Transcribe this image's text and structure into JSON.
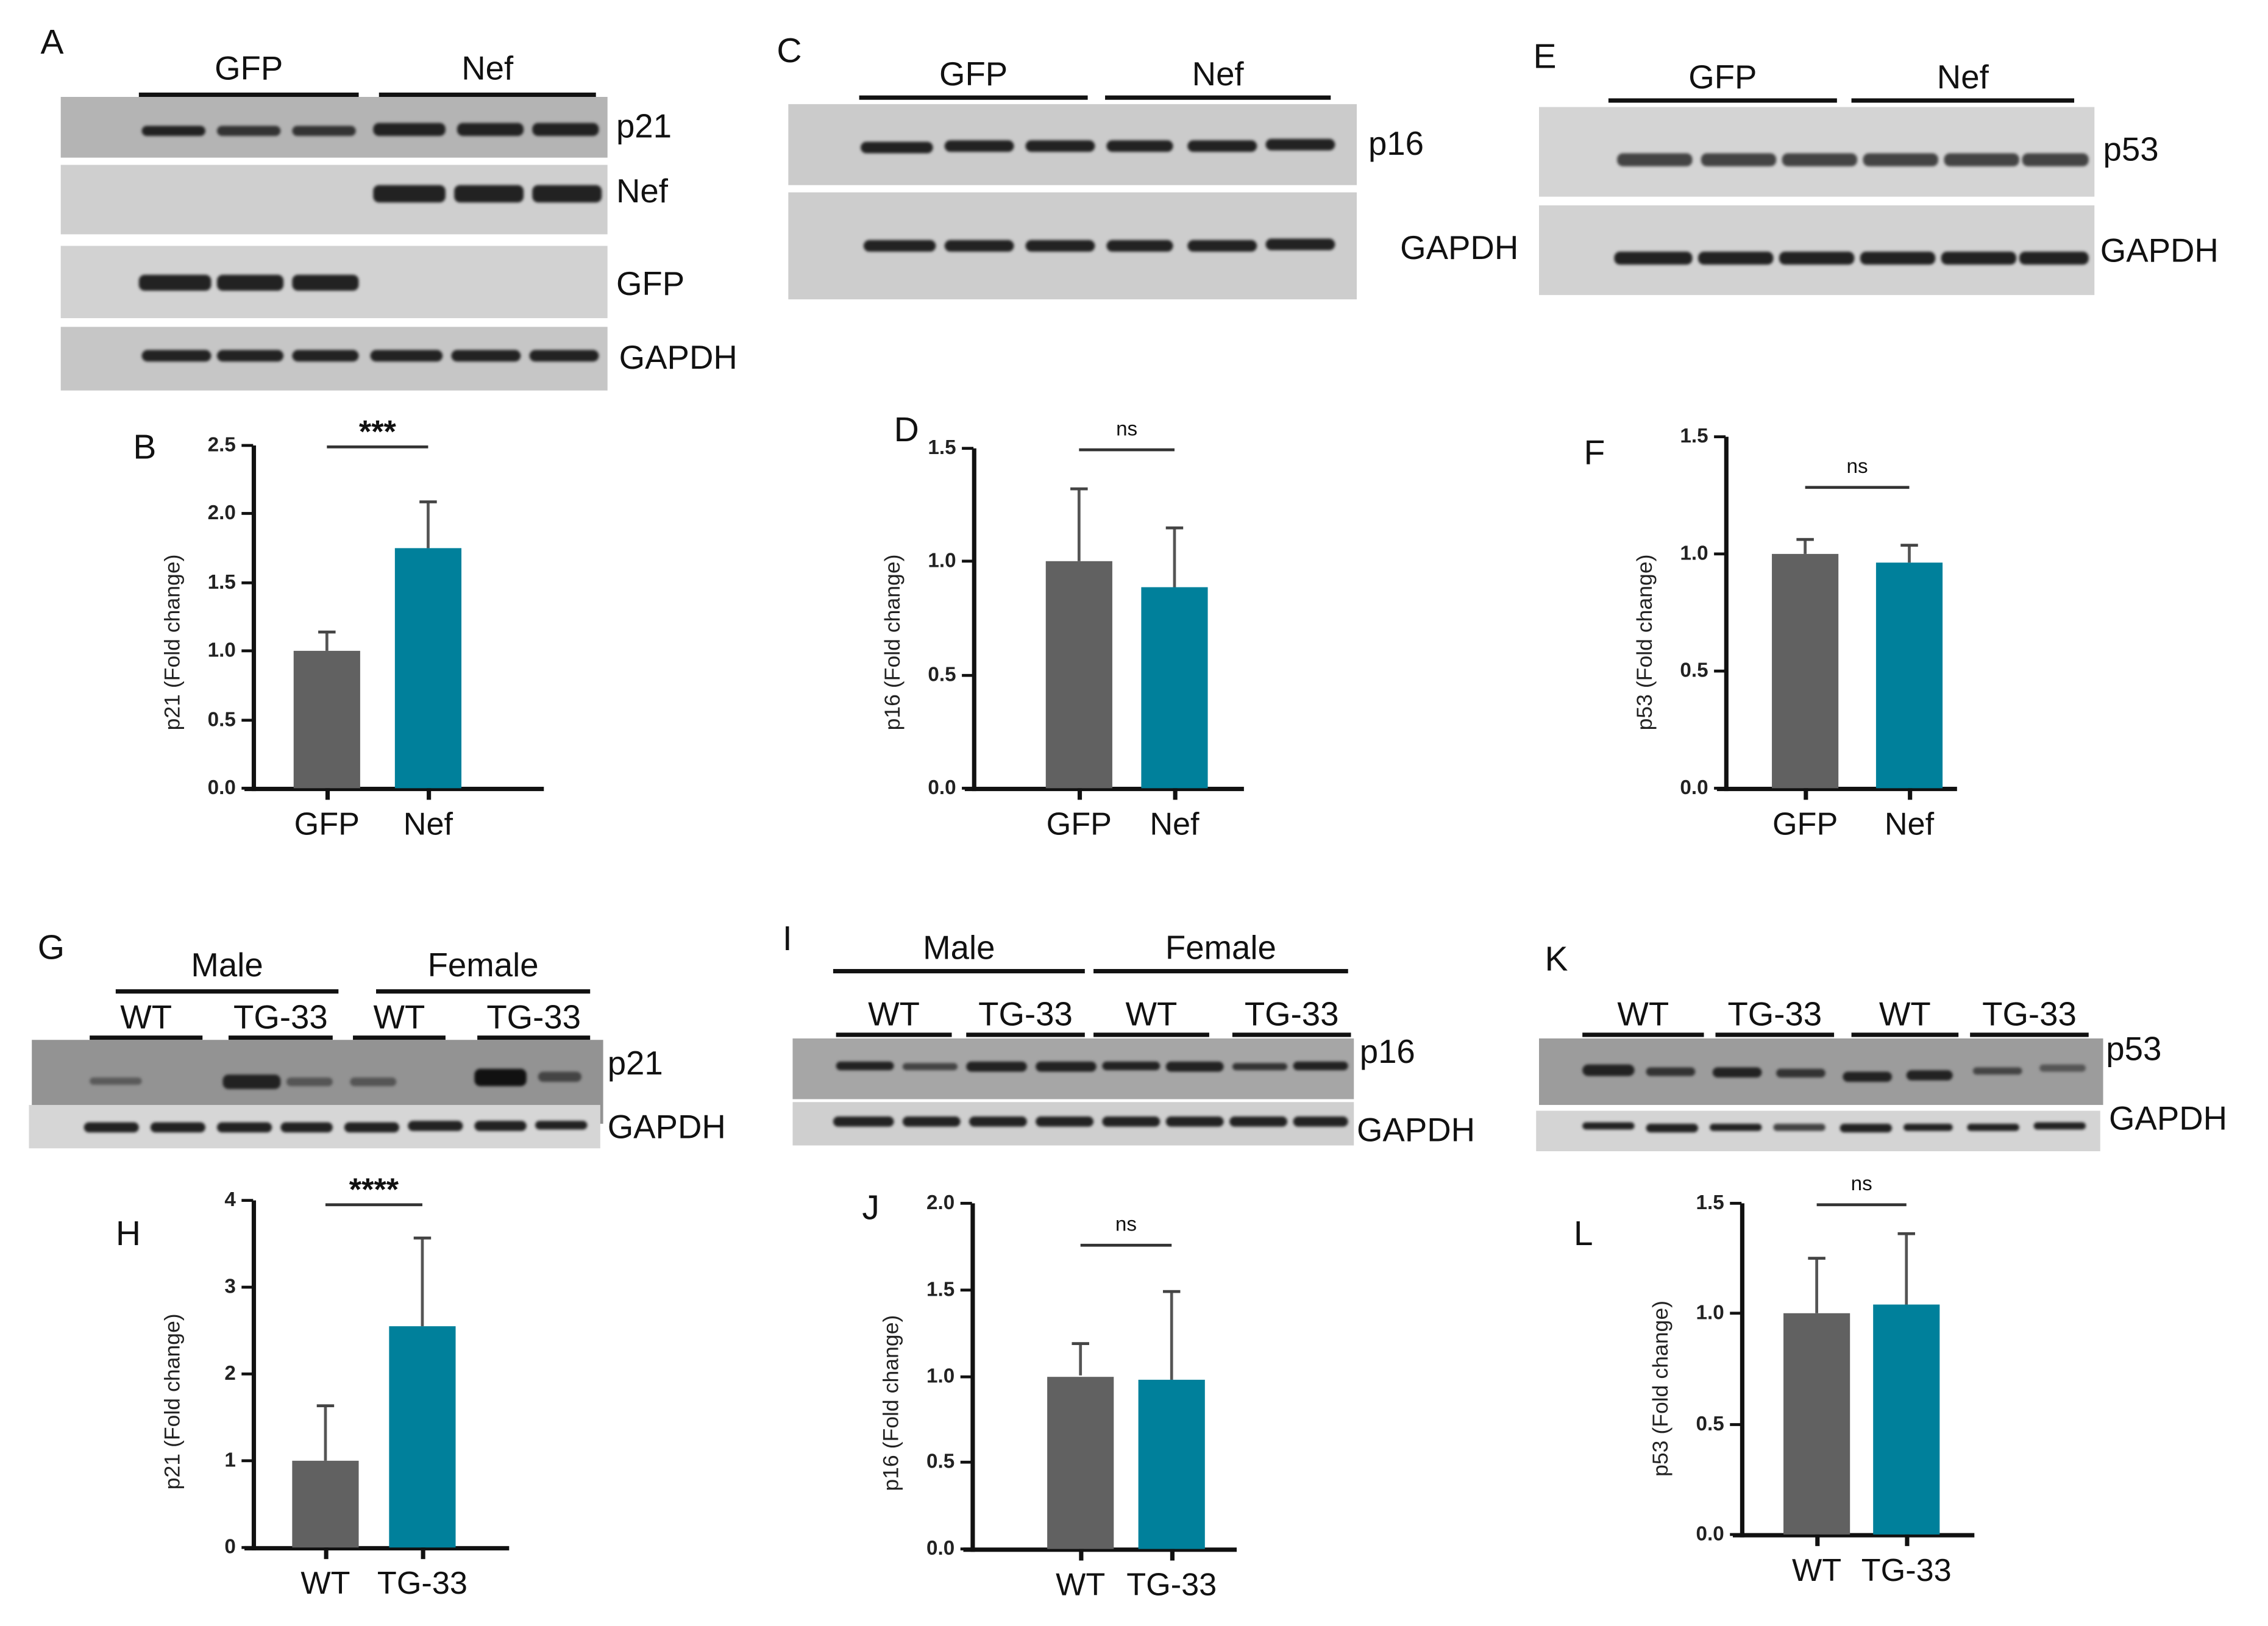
{
  "figure": {
    "colors": {
      "control": "#616161",
      "treatment": "#00809b",
      "axis": "#111111"
    },
    "panels": {
      "A": {
        "label": "A",
        "groups": [
          "GFP",
          "Nef"
        ],
        "blots": [
          "p21",
          "Nef",
          "GFP",
          "GAPDH"
        ]
      },
      "C": {
        "label": "C",
        "groups": [
          "GFP",
          "Nef"
        ],
        "blots": [
          "p16",
          "GAPDH"
        ]
      },
      "E": {
        "label": "E",
        "groups": [
          "GFP",
          "Nef"
        ],
        "blots": [
          "p53",
          "GAPDH"
        ]
      },
      "G": {
        "label": "G",
        "sex_groups": [
          "Male",
          "Female"
        ],
        "groups": [
          "WT",
          "TG-33",
          "WT",
          "TG-33"
        ],
        "blots": [
          "p21",
          "GAPDH"
        ]
      },
      "I": {
        "label": "I",
        "sex_groups": [
          "Male",
          "Female"
        ],
        "groups": [
          "WT",
          "TG-33",
          "WT",
          "TG-33"
        ],
        "blots": [
          "p16",
          "GAPDH"
        ]
      },
      "K": {
        "label": "K",
        "groups": [
          "WT",
          "TG-33",
          "WT",
          "TG-33"
        ],
        "blots": [
          "p53",
          "GAPDH"
        ]
      }
    }
  },
  "chart_data": [
    {
      "panel": "B",
      "type": "bar",
      "categories": [
        "GFP",
        "Nef"
      ],
      "values": [
        1.0,
        1.75
      ],
      "error_upper": [
        1.14,
        2.09
      ],
      "ylabel": "p21 (Fold change)",
      "ylim": [
        0,
        2.5
      ],
      "yticks": [
        "0.0",
        "0.5",
        "1.0",
        "1.5",
        "2.0",
        "2.5"
      ],
      "significance": "***",
      "title": ""
    },
    {
      "panel": "D",
      "type": "bar",
      "categories": [
        "GFP",
        "Nef"
      ],
      "values": [
        1.0,
        0.89
      ],
      "error_upper": [
        1.32,
        1.15
      ],
      "ylabel": "p16 (Fold change)",
      "ylim": [
        0,
        1.5
      ],
      "yticks": [
        "0.0",
        "0.5",
        "1.0",
        "1.5"
      ],
      "significance": "ns",
      "title": ""
    },
    {
      "panel": "F",
      "type": "bar",
      "categories": [
        "GFP",
        "Nef"
      ],
      "values": [
        1.0,
        0.96
      ],
      "error_upper": [
        1.06,
        1.04
      ],
      "ylabel": "p53 (Fold change)",
      "ylim": [
        0,
        1.5
      ],
      "yticks": [
        "0.0",
        "0.5",
        "1.0",
        "1.5"
      ],
      "significance": "ns",
      "title": ""
    },
    {
      "panel": "H",
      "type": "bar",
      "categories": [
        "WT",
        "TG-33"
      ],
      "values": [
        1.0,
        2.55
      ],
      "error_upper": [
        1.63,
        3.57
      ],
      "ylabel": "p21 (Fold change)",
      "ylim": [
        0,
        4
      ],
      "yticks": [
        "0",
        "1",
        "2",
        "3",
        "4"
      ],
      "significance": "****",
      "title": ""
    },
    {
      "panel": "J",
      "type": "bar",
      "categories": [
        "WT",
        "TG-33"
      ],
      "values": [
        1.0,
        0.98
      ],
      "error_upper": [
        1.19,
        1.49
      ],
      "ylabel": "p16 (Fold change)",
      "ylim": [
        0,
        2.0
      ],
      "yticks": [
        "0.0",
        "0.5",
        "1.0",
        "1.5",
        "2.0"
      ],
      "significance": "ns",
      "title": ""
    },
    {
      "panel": "L",
      "type": "bar",
      "categories": [
        "WT",
        "TG-33"
      ],
      "values": [
        1.0,
        1.04
      ],
      "error_upper": [
        1.25,
        1.36
      ],
      "ylabel": "p53 (Fold change)",
      "ylim": [
        0,
        1.5
      ],
      "yticks": [
        "0.0",
        "0.5",
        "1.0",
        "1.5"
      ],
      "significance": "ns",
      "title": ""
    }
  ]
}
